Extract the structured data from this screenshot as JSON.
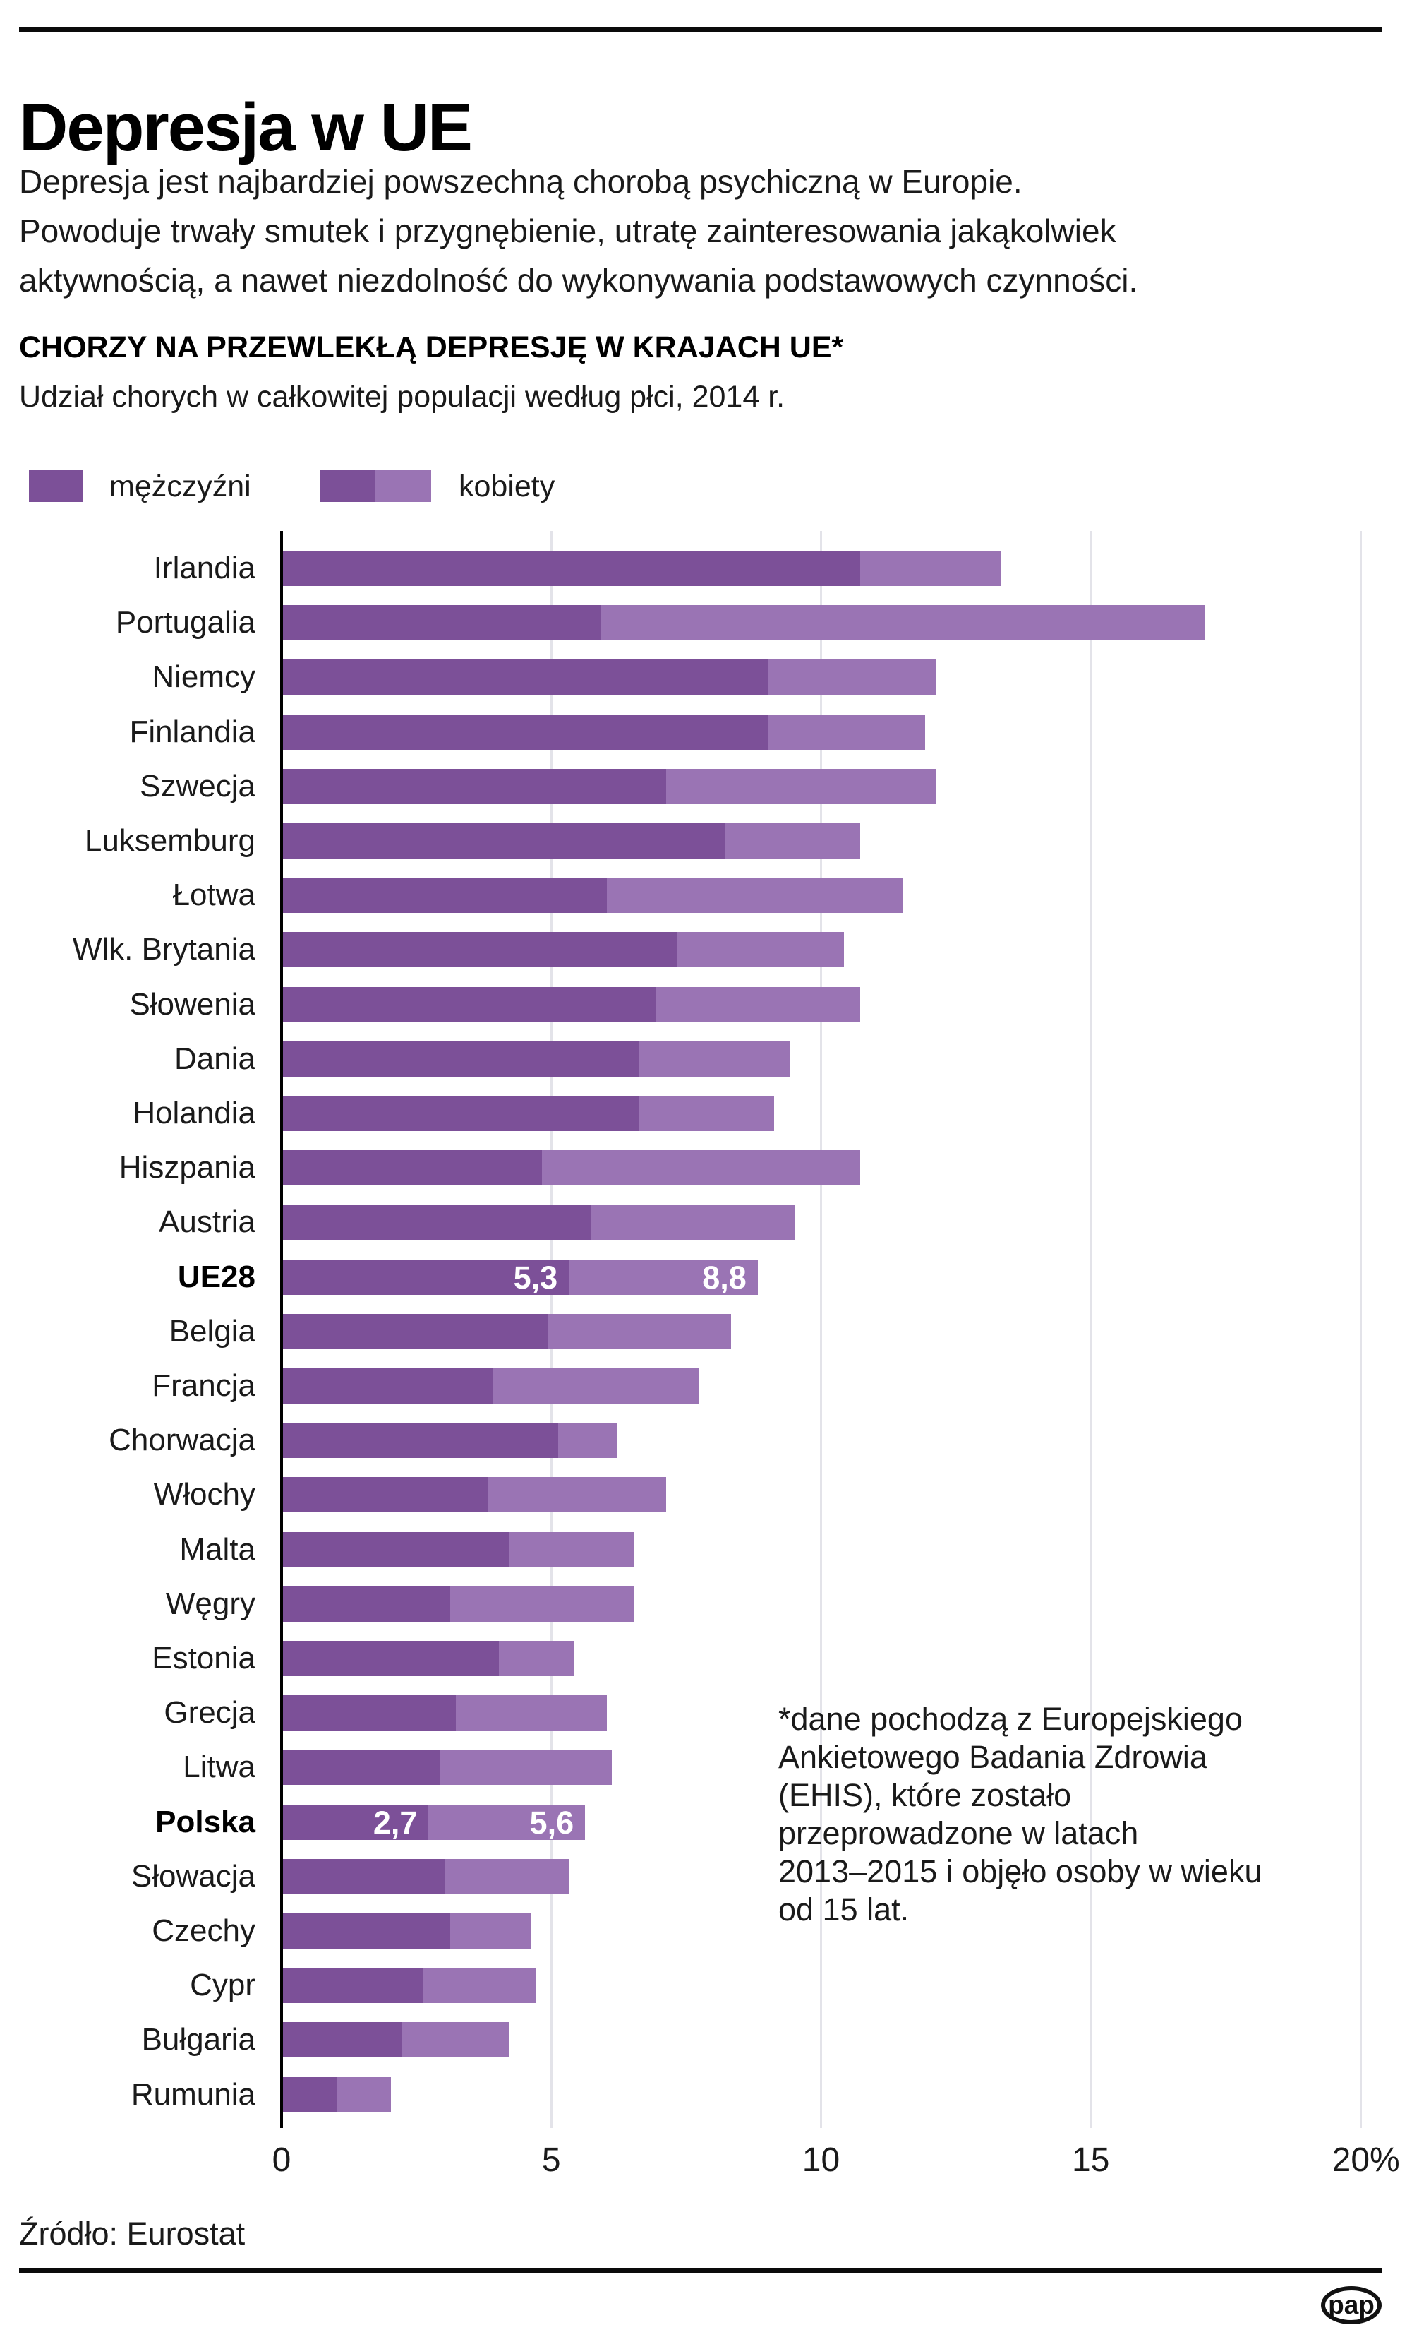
{
  "page": {
    "title": "Depresja w UE",
    "intro_lines": [
      "Depresja jest najbardziej powszechną chorobą psychiczną w Europie.",
      "Powoduje trwały smutek i przygnębienie, utratę zainteresowania jakąkolwiek",
      "aktywnością, a nawet niezdolność do wykonywania podstawowych czynności."
    ],
    "section_title": "CHORZY NA PRZEWLEKŁĄ DEPRESJĘ W KRAJACH UE*",
    "section_subtitle": "Udział chorych w całkowitej populacji według płci, 2014 r.",
    "source": "Źródło: Eurostat",
    "logo_text": "pap"
  },
  "legend": {
    "men_label": "mężczyźni",
    "women_label": "kobiety"
  },
  "colors": {
    "men": "#7c5098",
    "women": "#9a74b4",
    "grid": "#e3e3e9",
    "axis": "#000000",
    "text": "#1a1a1a",
    "value_label": "#ffffff"
  },
  "annotation_lines": [
    "*dane pochodzą z Europejskiego",
    "Ankietowego Badania Zdrowia",
    "(EHIS), które zostało",
    "przeprowadzone w latach",
    "2013–2015 i objęło osoby w wieku",
    "od 15 lat."
  ],
  "chart_data": {
    "type": "bar",
    "orientation": "horizontal",
    "title": "CHORZY NA PRZEWLEKŁĄ DEPRESJĘ W KRAJACH UE*",
    "subtitle": "Udział chorych w całkowitej populacji według płci, 2014 r.",
    "unit": "%",
    "xlim": [
      0,
      20
    ],
    "x_tick_values": [
      0,
      5,
      10,
      15,
      20
    ],
    "x_ticks": [
      "0",
      "5",
      "10",
      "15",
      "20%"
    ],
    "grid": true,
    "series_names": [
      "mężczyźni",
      "kobiety"
    ],
    "rows": [
      {
        "label": "Irlandia",
        "men": 10.7,
        "women": 13.3
      },
      {
        "label": "Portugalia",
        "men": 5.9,
        "women": 17.1
      },
      {
        "label": "Niemcy",
        "men": 9.0,
        "women": 12.1
      },
      {
        "label": "Finlandia",
        "men": 9.0,
        "women": 11.9
      },
      {
        "label": "Szwecja",
        "men": 7.1,
        "women": 12.1
      },
      {
        "label": "Luksemburg",
        "men": 8.2,
        "women": 10.7
      },
      {
        "label": "Łotwa",
        "men": 6.0,
        "women": 11.5
      },
      {
        "label": "Wlk. Brytania",
        "men": 7.3,
        "women": 10.4
      },
      {
        "label": "Słowenia",
        "men": 6.9,
        "women": 10.7
      },
      {
        "label": "Dania",
        "men": 6.6,
        "women": 9.4
      },
      {
        "label": "Holandia",
        "men": 6.6,
        "women": 9.1
      },
      {
        "label": "Hiszpania",
        "men": 4.8,
        "women": 10.7
      },
      {
        "label": "Austria",
        "men": 5.7,
        "women": 9.5
      },
      {
        "label": "UE28",
        "men": 5.3,
        "women": 8.8,
        "bold": true,
        "show_values": true,
        "men_text": "5,3",
        "women_text": "8,8"
      },
      {
        "label": "Belgia",
        "men": 4.9,
        "women": 8.3
      },
      {
        "label": "Francja",
        "men": 3.9,
        "women": 7.7
      },
      {
        "label": "Chorwacja",
        "men": 5.1,
        "women": 6.2
      },
      {
        "label": "Włochy",
        "men": 3.8,
        "women": 7.1
      },
      {
        "label": "Malta",
        "men": 4.2,
        "women": 6.5
      },
      {
        "label": "Węgry",
        "men": 3.1,
        "women": 6.5
      },
      {
        "label": "Estonia",
        "men": 4.0,
        "women": 5.4
      },
      {
        "label": "Grecja",
        "men": 3.2,
        "women": 6.0
      },
      {
        "label": "Litwa",
        "men": 2.9,
        "women": 6.1
      },
      {
        "label": "Polska",
        "men": 2.7,
        "women": 5.6,
        "bold": true,
        "show_values": true,
        "men_text": "2,7",
        "women_text": "5,6"
      },
      {
        "label": "Słowacja",
        "men": 3.0,
        "women": 5.3
      },
      {
        "label": "Czechy",
        "men": 3.1,
        "women": 4.6
      },
      {
        "label": "Cypr",
        "men": 2.6,
        "women": 4.7
      },
      {
        "label": "Bułgaria",
        "men": 2.2,
        "women": 4.2
      },
      {
        "label": "Rumunia",
        "men": 1.0,
        "women": 2.0
      }
    ]
  }
}
